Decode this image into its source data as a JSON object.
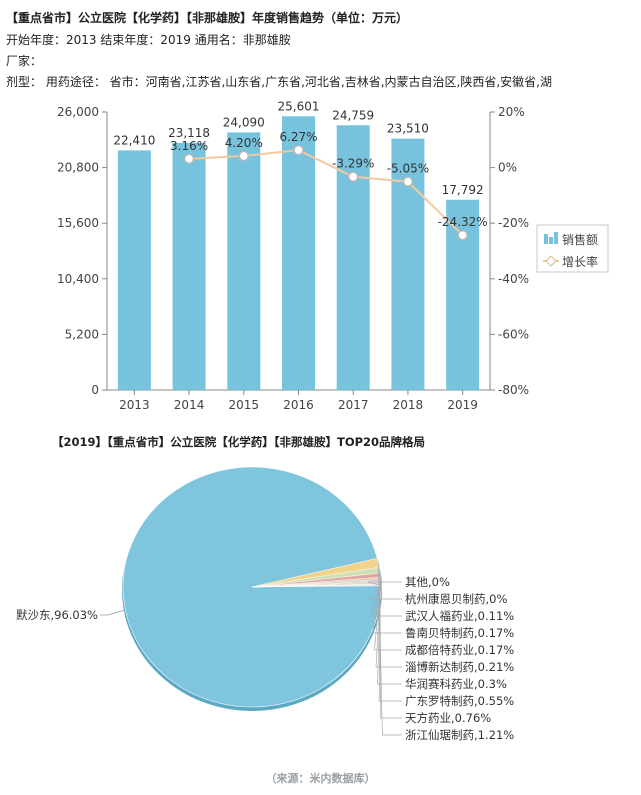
{
  "header": {
    "title": "【重点省市】公立医院【化学药】【非那雄胺】年度销售趋势（单位：万元）",
    "meta_line": "开始年度：2013   结束年度：2019   通用名：非那雄胺",
    "factory_label": "厂家：",
    "route_line": "剂型：    用药途径：    省市：河南省,江苏省,山东省,广东省,河北省,吉林省,内蒙古自治区,陕西省,安徽省,湖"
  },
  "pie_title": "【2019】【重点省市】公立医院【化学药】【非那雄胺】TOP20品牌格局",
  "source": "（来源：米内数据库）",
  "colors": {
    "bar": "#77c3dd",
    "line": "#f2c9a0",
    "marker_fill": "#ffffff",
    "marker_stroke": "#b8b8b8",
    "axis": "#888888",
    "pie_main": "#7fc5dd",
    "pie_edge": "#5ca9c2"
  },
  "chart_data": [
    {
      "type": "bar",
      "categories": [
        "2013",
        "2014",
        "2015",
        "2016",
        "2017",
        "2018",
        "2019"
      ],
      "series": [
        {
          "name": "销售额",
          "type": "bar",
          "axis": "left",
          "values": [
            22410,
            23118,
            24090,
            25601,
            24759,
            23510,
            17792
          ],
          "labels": [
            "22,410",
            "23,118",
            "24,090",
            "25,601",
            "24,759",
            "23,510",
            "17,792"
          ]
        },
        {
          "name": "增长率",
          "type": "line",
          "axis": "right",
          "values": [
            null,
            3.16,
            4.2,
            6.27,
            -3.29,
            -5.05,
            -24.32
          ],
          "labels": [
            "",
            "3.16%",
            "4.20%",
            "6.27%",
            "-3.29%",
            "-5.05%",
            "-24.32%"
          ]
        }
      ],
      "left_axis": {
        "ylim": [
          0,
          26000
        ],
        "ticks": [
          "0",
          "5,200",
          "10,400",
          "15,600",
          "20,800",
          "26,000"
        ]
      },
      "right_axis": {
        "ylim": [
          -80,
          20
        ],
        "ticks": [
          "-80%",
          "-60%",
          "-40%",
          "-20%",
          "0%",
          "20%"
        ]
      },
      "legend": {
        "position": "right",
        "entries": [
          "销售额",
          "增长率"
        ]
      },
      "grid": false
    },
    {
      "type": "pie",
      "labels": [
        "默沙东,96.03%",
        "其他,0%",
        "杭州康恩贝制药,0%",
        "武汉人福药业,0.11%",
        "鲁南贝特制药,0.17%",
        "成都倍特药业,0.17%",
        "淄博新达制药,0.21%",
        "华润赛科药业,0.3%",
        "广东罗特制药,0.55%",
        "天方药业,0.76%",
        "浙江仙琚制药,1.21%"
      ],
      "categories": [
        "默沙东",
        "其他",
        "杭州康恩贝制药",
        "武汉人福药业",
        "鲁南贝特制药",
        "成都倍特药业",
        "淄博新达制药",
        "华润赛科药业",
        "广东罗特制药",
        "天方药业",
        "浙江仙琚制药"
      ],
      "values": [
        96.03,
        0,
        0,
        0.11,
        0.17,
        0.17,
        0.21,
        0.3,
        0.55,
        0.76,
        1.21
      ],
      "slice_colors": [
        "#7fc5dd",
        "#d5c1d0",
        "#f5eab0",
        "#a8d7c1",
        "#e9b49b",
        "#c8d9a6",
        "#b9c3e8",
        "#f0c7a6",
        "#e3a5a1",
        "#cfe0b5",
        "#f2d38c"
      ]
    }
  ]
}
